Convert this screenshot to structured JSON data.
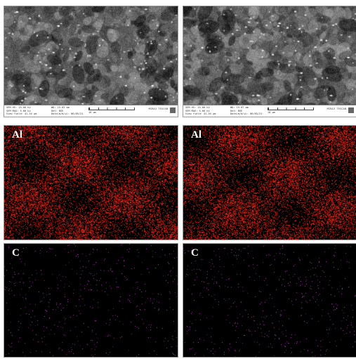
{
  "figure": {
    "sem_panels": [
      {
        "info_col1": [
          "SEM HV: 15.00 kV",
          "SEM MAG: 5.00 kx",
          "View field: 41.54 µm"
        ],
        "info_col2": [
          "WD: 15.03 mm",
          "Det: BSE",
          "Date(m/d/y): 06/05/21"
        ],
        "scale_label": "10 µm",
        "brand": "MIRA3 TESCAN"
      },
      {
        "info_col1": [
          "SEM HV: 15.00 kV",
          "SEM MAG: 5.00 kx",
          "View field: 41.54 µm"
        ],
        "info_col2": [
          "WD: 15.07 mm",
          "Det: BSE",
          "Date(m/d/y): 06/05/21"
        ],
        "scale_label": "10 µm",
        "brand": "MIRA3 TESCAN"
      }
    ],
    "element_maps": [
      {
        "element": "Al",
        "color": "#ff2b1e",
        "density": 0.42
      },
      {
        "element": "C",
        "color": "#d24bd9",
        "density": 0.018
      }
    ]
  }
}
